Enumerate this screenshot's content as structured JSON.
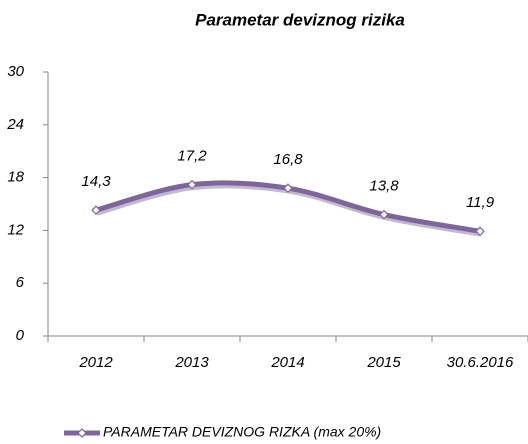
{
  "chart_data": {
    "type": "line",
    "title": "Parametar deviznog rizika",
    "categories": [
      "2012",
      "2013",
      "2014",
      "2015",
      "30.6.2016"
    ],
    "series": [
      {
        "name": "PARAMETAR DEVIZNOG RIZKA (max 20%)",
        "color": "#8064a2",
        "values": [
          14.3,
          17.2,
          16.8,
          13.8,
          11.9
        ],
        "value_labels": [
          "14,3",
          "17,2",
          "16,8",
          "13,8",
          "11,9"
        ]
      }
    ],
    "ylim": [
      0,
      30
    ],
    "yticks": [
      0,
      6,
      12,
      18,
      24,
      30
    ],
    "grid": false,
    "smooth": true,
    "legend": "bottom"
  }
}
